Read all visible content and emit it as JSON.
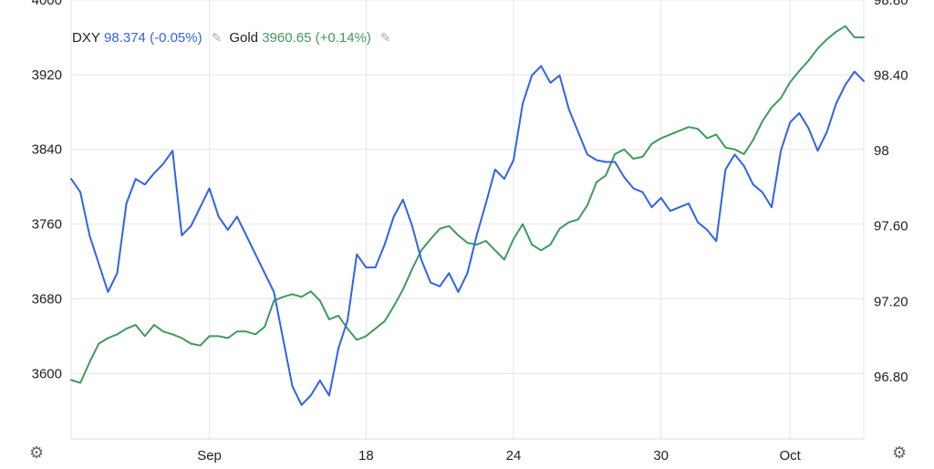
{
  "legend": {
    "dxy_symbol": "DXY",
    "dxy_value": "98.374",
    "dxy_change": "(-0.05%)",
    "gold_symbol": "Gold",
    "gold_value": "3960.65",
    "gold_change": "(+0.14%)",
    "edit_icon": "pencil-icon"
  },
  "settings_icon": "gear-icon",
  "colors": {
    "dxy": "#2f63e8",
    "gold": "#3f9a5e",
    "grid": "#e6e6e6"
  },
  "chart_data": {
    "type": "line",
    "title": "",
    "x_ticks": [
      {
        "label": "Sep",
        "x": 15
      },
      {
        "label": "18",
        "x": 32
      },
      {
        "label": "24",
        "x": 48
      },
      {
        "label": "30",
        "x": 64
      },
      {
        "label": "Oct",
        "x": 78
      }
    ],
    "xlim": [
      0,
      86
    ],
    "left_axis": {
      "series": "Gold",
      "ylim": [
        3530,
        4000
      ],
      "ticks": [
        "4000",
        "3920",
        "3840",
        "3760",
        "3680",
        "3600"
      ],
      "tick_values": [
        4000,
        3920,
        3840,
        3760,
        3680,
        3600
      ]
    },
    "right_axis": {
      "series": "DXY",
      "ylim": [
        96.47,
        98.8
      ],
      "ticks": [
        "98.80",
        "98.40",
        "98",
        "97.60",
        "97.20",
        "96.80"
      ],
      "tick_values": [
        98.8,
        98.4,
        98,
        97.6,
        97.2,
        96.8
      ]
    },
    "grid": true,
    "series": [
      {
        "name": "Gold",
        "axis": "left",
        "x": [
          0,
          1,
          2,
          3,
          4,
          5,
          6,
          7,
          8,
          9,
          10,
          11,
          12,
          13,
          14,
          15,
          16,
          17,
          18,
          19,
          20,
          21,
          22,
          23,
          24,
          25,
          26,
          27,
          28,
          29,
          30,
          31,
          32,
          33,
          34,
          35,
          36,
          37,
          38,
          39,
          40,
          41,
          42,
          43,
          44,
          45,
          46,
          47,
          48,
          49,
          50,
          51,
          52,
          53,
          54,
          55,
          56,
          57,
          58,
          59,
          60,
          61,
          62,
          63,
          64,
          65,
          66,
          67,
          68,
          69,
          70,
          71,
          72,
          73,
          74,
          75,
          76,
          77,
          78,
          79,
          80,
          81,
          82,
          83,
          84,
          85,
          86
        ],
        "values": [
          3593,
          3590,
          3612,
          3632,
          3638,
          3642,
          3648,
          3652,
          3640,
          3652,
          3645,
          3642,
          3638,
          3632,
          3630,
          3640,
          3640,
          3638,
          3645,
          3645,
          3642,
          3650,
          3678,
          3682,
          3685,
          3682,
          3688,
          3678,
          3658,
          3662,
          3648,
          3636,
          3640,
          3648,
          3656,
          3672,
          3690,
          3712,
          3732,
          3744,
          3755,
          3758,
          3748,
          3740,
          3738,
          3742,
          3732,
          3722,
          3744,
          3760,
          3738,
          3732,
          3738,
          3755,
          3762,
          3765,
          3780,
          3805,
          3812,
          3835,
          3840,
          3830,
          3832,
          3846,
          3852,
          3856,
          3860,
          3864,
          3862,
          3852,
          3856,
          3842,
          3840,
          3835,
          3850,
          3870,
          3885,
          3895,
          3912,
          3924,
          3935,
          3948,
          3958,
          3966,
          3972,
          3960,
          3960
        ]
      },
      {
        "name": "DXY",
        "axis": "right",
        "x": [
          0,
          1,
          2,
          3,
          4,
          5,
          6,
          7,
          8,
          9,
          10,
          11,
          12,
          13,
          14,
          15,
          16,
          17,
          18,
          19,
          20,
          21,
          22,
          23,
          24,
          25,
          26,
          27,
          28,
          29,
          30,
          31,
          32,
          33,
          34,
          35,
          36,
          37,
          38,
          39,
          40,
          41,
          42,
          43,
          44,
          45,
          46,
          47,
          48,
          49,
          50,
          51,
          52,
          53,
          54,
          55,
          56,
          57,
          58,
          59,
          60,
          61,
          62,
          63,
          64,
          65,
          66,
          67,
          68,
          69,
          70,
          71,
          72,
          73,
          74,
          75,
          76,
          77,
          78,
          79,
          80,
          81,
          82,
          83,
          84,
          85,
          86
        ],
        "values": [
          97.85,
          97.78,
          97.55,
          97.4,
          97.25,
          97.35,
          97.72,
          97.85,
          97.82,
          97.88,
          97.93,
          98.0,
          97.55,
          97.6,
          97.7,
          97.8,
          97.65,
          97.58,
          97.65,
          97.55,
          97.45,
          97.35,
          97.25,
          97.0,
          96.75,
          96.65,
          96.7,
          96.78,
          96.7,
          96.95,
          97.1,
          97.45,
          97.38,
          97.38,
          97.5,
          97.65,
          97.74,
          97.6,
          97.42,
          97.3,
          97.28,
          97.35,
          97.25,
          97.35,
          97.55,
          97.72,
          97.9,
          97.85,
          97.95,
          98.25,
          98.4,
          98.45,
          98.36,
          98.4,
          98.22,
          98.1,
          97.98,
          97.95,
          97.94,
          97.94,
          97.86,
          97.8,
          97.78,
          97.7,
          97.75,
          97.68,
          97.7,
          97.72,
          97.62,
          97.58,
          97.52,
          97.9,
          97.98,
          97.92,
          97.82,
          97.78,
          97.7,
          98.0,
          98.15,
          98.2,
          98.12,
          98.0,
          98.1,
          98.25,
          98.35,
          98.42,
          98.37
        ]
      }
    ]
  }
}
